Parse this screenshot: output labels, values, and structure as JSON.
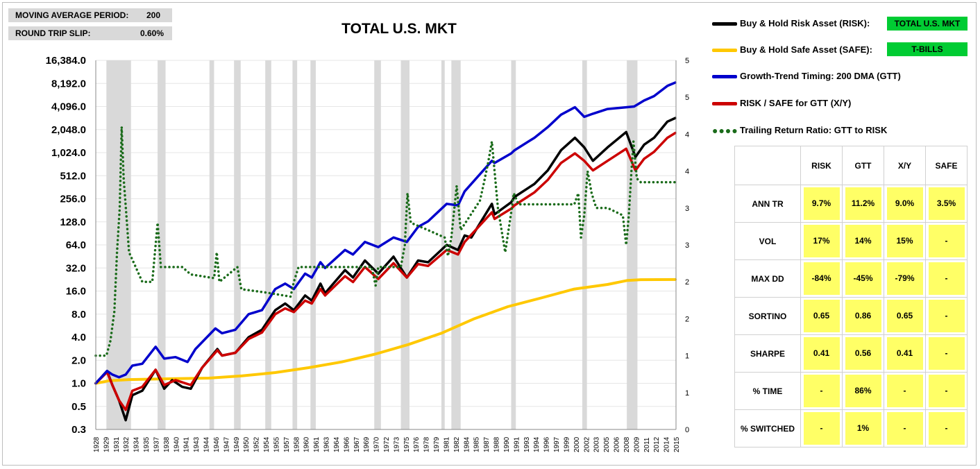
{
  "params": {
    "ma_period_label": "MOVING AVERAGE PERIOD:",
    "ma_period_value": "200",
    "slip_label": "ROUND TRIP SLIP:",
    "slip_value": "0.60%"
  },
  "legend": {
    "items": [
      {
        "label": "Buy & Hold Risk Asset (RISK):",
        "color": "#000000",
        "style": "line"
      },
      {
        "label": "Buy & Hold Safe Asset (SAFE):",
        "color": "#ffcc00",
        "style": "line"
      },
      {
        "label": "Growth-Trend Timing: 200 DMA (GTT)",
        "color": "#0000cc",
        "style": "line"
      },
      {
        "label": "RISK / SAFE for GTT (X/Y)",
        "color": "#cc0000",
        "style": "line"
      },
      {
        "label": "Trailing Return Ratio: GTT to RISK",
        "color": "#1a6b1a",
        "style": "dots"
      }
    ],
    "risk_asset": "TOTAL U.S. MKT",
    "safe_asset": "T-BILLS",
    "asset_badge_color": "#00cc33"
  },
  "stats": {
    "headers": [
      "RISK",
      "GTT",
      "X/Y",
      "SAFE"
    ],
    "rows": [
      {
        "label": "ANN TR",
        "values": [
          "9.7%",
          "11.2%",
          "9.0%",
          "3.5%"
        ]
      },
      {
        "label": "VOL",
        "values": [
          "17%",
          "14%",
          "15%",
          "-"
        ]
      },
      {
        "label": "MAX DD",
        "values": [
          "-84%",
          "-45%",
          "-79%",
          "-"
        ]
      },
      {
        "label": "SORTINO",
        "values": [
          "0.65",
          "0.86",
          "0.65",
          "-"
        ]
      },
      {
        "label": "SHARPE",
        "values": [
          "0.41",
          "0.56",
          "0.41",
          "-"
        ]
      },
      {
        "label": "% TIME",
        "values": [
          "-",
          "86%",
          "-",
          "-"
        ]
      },
      {
        "label": "% SWITCHED",
        "values": [
          "-",
          "1%",
          "-",
          "-"
        ]
      }
    ],
    "highlight_color": "#ffff66"
  },
  "chart_data": {
    "type": "line",
    "title": "TOTAL U.S. MKT",
    "y_scale": "log2",
    "y_ticks": [
      "16,384.0",
      "8,192.0",
      "4,096.0",
      "2,048.0",
      "1,024.0",
      "512.0",
      "256.0",
      "128.0",
      "64.0",
      "32.0",
      "16.0",
      "8.0",
      "4.0",
      "2.0",
      "1.0",
      "0.5",
      "0.3"
    ],
    "ylim": [
      0.25,
      16384
    ],
    "y2_ticks": [
      "0",
      "1",
      "1",
      "2",
      "2",
      "3",
      "3",
      "4",
      "4",
      "5",
      "5"
    ],
    "y2lim": [
      0,
      5
    ],
    "x_ticks": [
      "1928",
      "1929",
      "1931",
      "1932",
      "1934",
      "1935",
      "1937",
      "1938",
      "1940",
      "1941",
      "1943",
      "1944",
      "1946",
      "1947",
      "1949",
      "1950",
      "1952",
      "1954",
      "1955",
      "1957",
      "1958",
      "1960",
      "1961",
      "1963",
      "1964",
      "1966",
      "1967",
      "1969",
      "1970",
      "1972",
      "1973",
      "1975",
      "1976",
      "1978",
      "1979",
      "1981",
      "1982",
      "1984",
      "1985",
      "1987",
      "1988",
      "1990",
      "1991",
      "1993",
      "1994",
      "1996",
      "1997",
      "1999",
      "2000",
      "2002",
      "2003",
      "2005",
      "2006",
      "2008",
      "2009",
      "2011",
      "2012",
      "2014",
      "2015"
    ],
    "xlim": [
      1928.0,
      2015.3
    ],
    "recessions": [
      [
        1929.6,
        1933.3
      ],
      [
        1937.3,
        1938.5
      ],
      [
        1945.1,
        1945.8
      ],
      [
        1948.8,
        1949.8
      ],
      [
        1953.5,
        1954.4
      ],
      [
        1957.6,
        1958.3
      ],
      [
        1960.3,
        1961.1
      ],
      [
        1969.9,
        1970.9
      ],
      [
        1973.9,
        1975.2
      ],
      [
        1980.0,
        1980.5
      ],
      [
        1981.5,
        1982.9
      ],
      [
        1990.5,
        1991.2
      ],
      [
        2001.2,
        2001.9
      ],
      [
        2007.9,
        2009.5
      ]
    ],
    "series": [
      {
        "name": "Buy & Hold Risk Asset (RISK)",
        "color": "#000000",
        "points": [
          [
            1928,
            1.0
          ],
          [
            1929.7,
            1.45
          ],
          [
            1930.5,
            0.95
          ],
          [
            1931.5,
            0.6
          ],
          [
            1932.5,
            0.33
          ],
          [
            1933.5,
            0.7
          ],
          [
            1935,
            0.8
          ],
          [
            1937,
            1.5
          ],
          [
            1938.3,
            0.85
          ],
          [
            1939.5,
            1.1
          ],
          [
            1941,
            0.9
          ],
          [
            1942.3,
            0.85
          ],
          [
            1944,
            1.6
          ],
          [
            1946.3,
            2.8
          ],
          [
            1947,
            2.3
          ],
          [
            1949,
            2.5
          ],
          [
            1951,
            4
          ],
          [
            1953,
            5
          ],
          [
            1955,
            9
          ],
          [
            1956.5,
            11
          ],
          [
            1957.8,
            9
          ],
          [
            1959.5,
            14
          ],
          [
            1960.5,
            12
          ],
          [
            1961.8,
            20
          ],
          [
            1962.5,
            15
          ],
          [
            1965.5,
            30
          ],
          [
            1966.7,
            24
          ],
          [
            1968.5,
            40
          ],
          [
            1970.5,
            27
          ],
          [
            1972.8,
            45
          ],
          [
            1974.8,
            24
          ],
          [
            1976.5,
            40
          ],
          [
            1978,
            38
          ],
          [
            1980.8,
            64
          ],
          [
            1982.5,
            55
          ],
          [
            1983.5,
            85
          ],
          [
            1984.5,
            80
          ],
          [
            1987.6,
            220
          ],
          [
            1988,
            160
          ],
          [
            1990.5,
            230
          ],
          [
            1991,
            270
          ],
          [
            1994,
            400
          ],
          [
            1996,
            600
          ],
          [
            1998,
            1100
          ],
          [
            2000.1,
            1600
          ],
          [
            2001.5,
            1200
          ],
          [
            2002.8,
            800
          ],
          [
            2005,
            1200
          ],
          [
            2007.8,
            1900
          ],
          [
            2009.2,
            900
          ],
          [
            2010.5,
            1300
          ],
          [
            2012,
            1600
          ],
          [
            2014,
            2600
          ],
          [
            2015.2,
            2900
          ]
        ]
      },
      {
        "name": "Buy & Hold Safe Asset (SAFE)",
        "color": "#ffc800",
        "points": [
          [
            1928,
            1.0
          ],
          [
            1930,
            1.08
          ],
          [
            1933,
            1.12
          ],
          [
            1940,
            1.15
          ],
          [
            1945,
            1.17
          ],
          [
            1950,
            1.25
          ],
          [
            1955,
            1.38
          ],
          [
            1960,
            1.6
          ],
          [
            1965,
            1.9
          ],
          [
            1970,
            2.4
          ],
          [
            1975,
            3.2
          ],
          [
            1980,
            4.5
          ],
          [
            1985,
            7.0
          ],
          [
            1990,
            10
          ],
          [
            1995,
            13
          ],
          [
            2000,
            17
          ],
          [
            2005,
            19.5
          ],
          [
            2008,
            22
          ],
          [
            2010,
            22.5
          ],
          [
            2015.2,
            22.6
          ]
        ]
      },
      {
        "name": "Growth-Trend Timing: 200 DMA (GTT)",
        "color": "#0000cc",
        "points": [
          [
            1928,
            1.0
          ],
          [
            1929.7,
            1.45
          ],
          [
            1930.5,
            1.3
          ],
          [
            1931.5,
            1.2
          ],
          [
            1932.5,
            1.3
          ],
          [
            1933.5,
            1.7
          ],
          [
            1935,
            1.8
          ],
          [
            1937,
            3.0
          ],
          [
            1938.3,
            2.1
          ],
          [
            1940,
            2.2
          ],
          [
            1941.8,
            1.9
          ],
          [
            1943,
            2.8
          ],
          [
            1946,
            5.2
          ],
          [
            1947,
            4.5
          ],
          [
            1949,
            5.0
          ],
          [
            1951,
            8
          ],
          [
            1953,
            9
          ],
          [
            1955,
            17
          ],
          [
            1956.5,
            20
          ],
          [
            1957.8,
            17
          ],
          [
            1959.5,
            27
          ],
          [
            1960.5,
            24
          ],
          [
            1961.8,
            38
          ],
          [
            1962.5,
            32
          ],
          [
            1965.5,
            55
          ],
          [
            1966.7,
            48
          ],
          [
            1968.5,
            70
          ],
          [
            1970.5,
            60
          ],
          [
            1972.8,
            80
          ],
          [
            1974.8,
            70
          ],
          [
            1976.5,
            110
          ],
          [
            1978,
            130
          ],
          [
            1980.8,
            220
          ],
          [
            1982.5,
            210
          ],
          [
            1983.5,
            320
          ],
          [
            1987.6,
            800
          ],
          [
            1988,
            750
          ],
          [
            1990.5,
            1000
          ],
          [
            1991,
            1100
          ],
          [
            1994,
            1600
          ],
          [
            1996,
            2200
          ],
          [
            1998,
            3200
          ],
          [
            2000.1,
            4000
          ],
          [
            2001.5,
            3000
          ],
          [
            2002.8,
            3300
          ],
          [
            2005,
            3800
          ],
          [
            2007.8,
            4000
          ],
          [
            2009,
            4100
          ],
          [
            2010.5,
            4900
          ],
          [
            2012,
            5600
          ],
          [
            2014,
            7600
          ],
          [
            2015.2,
            8400
          ]
        ]
      },
      {
        "name": "RISK / SAFE for GTT (X/Y)",
        "color": "#cc0000",
        "points": [
          [
            1928,
            1.0
          ],
          [
            1929.7,
            1.4
          ],
          [
            1930.5,
            0.95
          ],
          [
            1931.5,
            0.6
          ],
          [
            1932.5,
            0.45
          ],
          [
            1933.5,
            0.8
          ],
          [
            1935,
            0.9
          ],
          [
            1937,
            1.5
          ],
          [
            1938.3,
            0.95
          ],
          [
            1940,
            1.1
          ],
          [
            1942.3,
            0.95
          ],
          [
            1944,
            1.6
          ],
          [
            1946.3,
            2.7
          ],
          [
            1947,
            2.3
          ],
          [
            1949,
            2.5
          ],
          [
            1951,
            3.8
          ],
          [
            1953,
            4.6
          ],
          [
            1955,
            8
          ],
          [
            1956.5,
            9.5
          ],
          [
            1957.8,
            8.5
          ],
          [
            1959.5,
            12
          ],
          [
            1960.5,
            11
          ],
          [
            1961.8,
            17
          ],
          [
            1962.5,
            14
          ],
          [
            1965.5,
            25
          ],
          [
            1966.7,
            21
          ],
          [
            1968.5,
            33
          ],
          [
            1970.5,
            23
          ],
          [
            1972.8,
            37
          ],
          [
            1974.8,
            24
          ],
          [
            1976.5,
            36
          ],
          [
            1978,
            34
          ],
          [
            1980.8,
            55
          ],
          [
            1982.5,
            48
          ],
          [
            1983.5,
            70
          ],
          [
            1987.6,
            170
          ],
          [
            1988,
            140
          ],
          [
            1990.5,
            190
          ],
          [
            1991,
            210
          ],
          [
            1994,
            310
          ],
          [
            1996,
            450
          ],
          [
            1998,
            750
          ],
          [
            2000.1,
            1000
          ],
          [
            2001.5,
            800
          ],
          [
            2002.8,
            600
          ],
          [
            2005,
            800
          ],
          [
            2007.8,
            1150
          ],
          [
            2009.2,
            600
          ],
          [
            2010.5,
            850
          ],
          [
            2012,
            1050
          ],
          [
            2014,
            1600
          ],
          [
            2015.2,
            1850
          ]
        ]
      },
      {
        "name": "Trailing Return Ratio: GTT to RISK",
        "color": "#1a6b1a",
        "axis": "secondary",
        "points": [
          [
            1928,
            1.0
          ],
          [
            1929.6,
            1.0
          ],
          [
            1930.2,
            1.2
          ],
          [
            1930.8,
            1.6
          ],
          [
            1931.2,
            2.4
          ],
          [
            1931.6,
            3.0
          ],
          [
            1931.9,
            4.1
          ],
          [
            1932.2,
            3.4
          ],
          [
            1932.6,
            2.9
          ],
          [
            1933,
            2.4
          ],
          [
            1934,
            2.2
          ],
          [
            1935,
            2.0
          ],
          [
            1936.5,
            2.0
          ],
          [
            1937.3,
            2.8
          ],
          [
            1937.8,
            2.2
          ],
          [
            1938.5,
            2.2
          ],
          [
            1941,
            2.2
          ],
          [
            1942.3,
            2.1
          ],
          [
            1945.8,
            2.05
          ],
          [
            1946.2,
            2.4
          ],
          [
            1946.6,
            2.0
          ],
          [
            1949.3,
            2.2
          ],
          [
            1949.9,
            1.9
          ],
          [
            1954,
            1.85
          ],
          [
            1957.3,
            1.8
          ],
          [
            1957.8,
            2.0
          ],
          [
            1958.5,
            2.2
          ],
          [
            1960.5,
            2.2
          ],
          [
            1969.5,
            2.2
          ],
          [
            1970.1,
            1.95
          ],
          [
            1970.5,
            2.2
          ],
          [
            1973.9,
            2.2
          ],
          [
            1974.5,
            2.5
          ],
          [
            1974.9,
            3.2
          ],
          [
            1975.4,
            2.8
          ],
          [
            1978,
            2.7
          ],
          [
            1980.5,
            2.6
          ],
          [
            1981,
            2.35
          ],
          [
            1981.5,
            2.6
          ],
          [
            1982.3,
            3.3
          ],
          [
            1982.9,
            2.7
          ],
          [
            1985.8,
            3.1
          ],
          [
            1986.3,
            3.3
          ],
          [
            1987,
            3.6
          ],
          [
            1987.6,
            3.9
          ],
          [
            1988.5,
            3.0
          ],
          [
            1989.6,
            2.4
          ],
          [
            1990.6,
            3.0
          ],
          [
            1990.9,
            3.2
          ],
          [
            1991.6,
            3.05
          ],
          [
            1995.8,
            3.05
          ],
          [
            2000,
            3.05
          ],
          [
            2000.6,
            3.2
          ],
          [
            2001,
            2.6
          ],
          [
            2001.5,
            2.9
          ],
          [
            2002,
            3.5
          ],
          [
            2002.6,
            3.2
          ],
          [
            2003.3,
            3.0
          ],
          [
            2005,
            3.0
          ],
          [
            2007.3,
            2.9
          ],
          [
            2007.8,
            2.5
          ],
          [
            2008.2,
            2.9
          ],
          [
            2008.6,
            3.5
          ],
          [
            2008.9,
            3.9
          ],
          [
            2009.4,
            3.4
          ],
          [
            2010,
            3.35
          ],
          [
            2015.2,
            3.35
          ]
        ]
      }
    ]
  }
}
